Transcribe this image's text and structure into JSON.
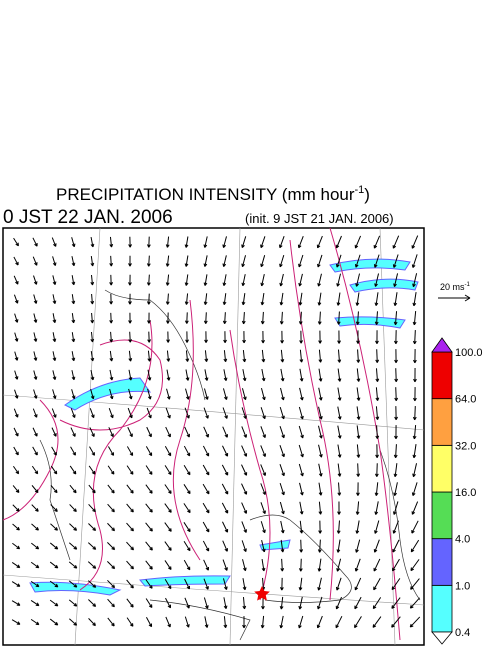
{
  "header": {
    "title": "PRECIPITATION INTENSITY (mm hour",
    "title_superscript": "-1",
    "title_tail": ")",
    "valid_time": "0 JST 22 JAN. 2006",
    "init_time": "(init. 9 JST 21 JAN. 2006)"
  },
  "wind_reference": {
    "label": "20 ms",
    "superscript": "-1"
  },
  "colorbar": {
    "ticks": [
      {
        "value": 0.4,
        "label": "0.4"
      },
      {
        "value": 1,
        "label": "1.0"
      },
      {
        "value": 4,
        "label": "4.0"
      },
      {
        "value": 16,
        "label": "16.0"
      },
      {
        "value": 32,
        "label": "32.0"
      },
      {
        "value": 64,
        "label": "64.0"
      },
      {
        "value": 100,
        "label": "100.0"
      }
    ],
    "colors": [
      "#55ffff",
      "#6464ff",
      "#55dd55",
      "#ffff66",
      "#ffa040",
      "#ee0000"
    ],
    "over_color": "#aa22ee",
    "under_color": "#ffffff"
  }
}
